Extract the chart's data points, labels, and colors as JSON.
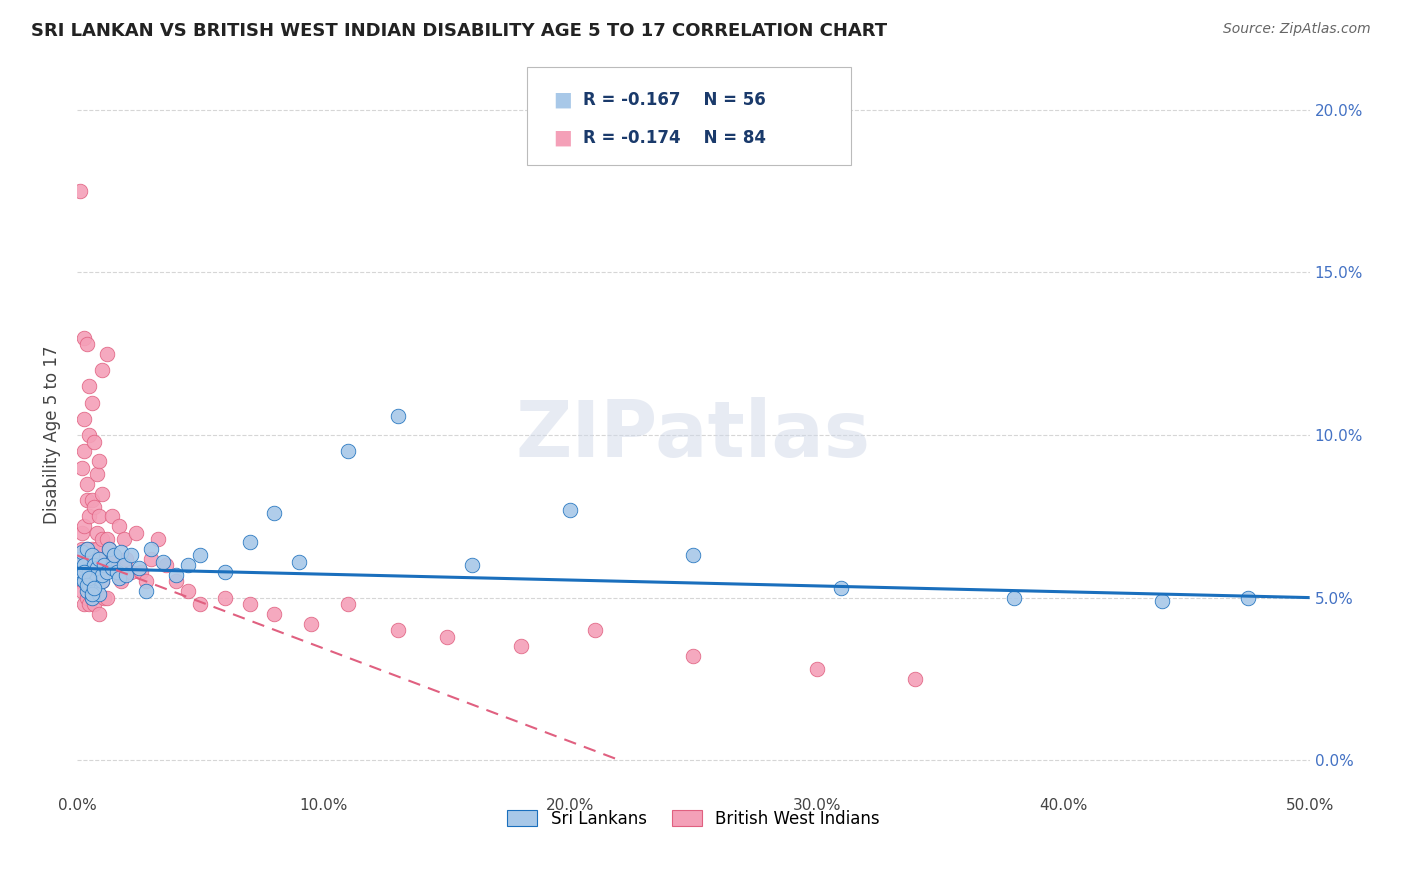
{
  "title": "SRI LANKAN VS BRITISH WEST INDIAN DISABILITY AGE 5 TO 17 CORRELATION CHART",
  "source": "Source: ZipAtlas.com",
  "ylabel": "Disability Age 5 to 17",
  "xlim": [
    0.0,
    0.5
  ],
  "ylim": [
    -0.01,
    0.21
  ],
  "yticks": [
    0.0,
    0.05,
    0.1,
    0.15,
    0.2
  ],
  "ytick_labels": [
    "0.0%",
    "5.0%",
    "10.0%",
    "15.0%",
    "20.0%"
  ],
  "xticks": [
    0.0,
    0.1,
    0.2,
    0.3,
    0.4,
    0.5
  ],
  "xtick_labels": [
    "0.0%",
    "10.0%",
    "20.0%",
    "30.0%",
    "40.0%",
    "50.0%"
  ],
  "blue_color": "#a8c8e8",
  "pink_color": "#f4a0b8",
  "blue_line_color": "#1a6fbd",
  "pink_line_color": "#e06080",
  "legend_r1": "R = -0.167",
  "legend_n1": "N = 56",
  "legend_r2": "R = -0.174",
  "legend_n2": "N = 84",
  "legend_label1": "Sri Lankans",
  "legend_label2": "British West Indians",
  "watermark": "ZIPatlas",
  "blue_trend_x0": 0.0,
  "blue_trend_y0": 0.059,
  "blue_trend_x1": 0.5,
  "blue_trend_y1": 0.05,
  "pink_trend_x0": 0.0,
  "pink_trend_y0": 0.063,
  "pink_trend_x1": 0.22,
  "pink_trend_y1": 0.0,
  "sri_lankan_x": [
    0.001,
    0.001,
    0.002,
    0.002,
    0.003,
    0.003,
    0.004,
    0.004,
    0.005,
    0.005,
    0.006,
    0.006,
    0.007,
    0.007,
    0.008,
    0.008,
    0.009,
    0.009,
    0.01,
    0.01,
    0.011,
    0.012,
    0.013,
    0.014,
    0.015,
    0.016,
    0.017,
    0.018,
    0.019,
    0.02,
    0.022,
    0.025,
    0.028,
    0.03,
    0.035,
    0.04,
    0.045,
    0.05,
    0.06,
    0.07,
    0.08,
    0.09,
    0.11,
    0.13,
    0.16,
    0.2,
    0.25,
    0.31,
    0.38,
    0.44,
    0.475,
    0.003,
    0.004,
    0.005,
    0.006,
    0.007
  ],
  "sri_lankan_y": [
    0.056,
    0.062,
    0.058,
    0.064,
    0.055,
    0.06,
    0.052,
    0.065,
    0.054,
    0.058,
    0.05,
    0.063,
    0.053,
    0.06,
    0.056,
    0.059,
    0.051,
    0.062,
    0.055,
    0.057,
    0.06,
    0.058,
    0.065,
    0.059,
    0.063,
    0.058,
    0.056,
    0.064,
    0.06,
    0.057,
    0.063,
    0.059,
    0.052,
    0.065,
    0.061,
    0.057,
    0.06,
    0.063,
    0.058,
    0.067,
    0.076,
    0.061,
    0.095,
    0.106,
    0.06,
    0.077,
    0.063,
    0.053,
    0.05,
    0.049,
    0.05,
    0.058,
    0.054,
    0.056,
    0.051,
    0.053
  ],
  "bwi_x": [
    0.001,
    0.001,
    0.001,
    0.002,
    0.002,
    0.002,
    0.002,
    0.003,
    0.003,
    0.003,
    0.003,
    0.004,
    0.004,
    0.004,
    0.004,
    0.005,
    0.005,
    0.005,
    0.005,
    0.006,
    0.006,
    0.006,
    0.006,
    0.007,
    0.007,
    0.007,
    0.007,
    0.008,
    0.008,
    0.008,
    0.009,
    0.009,
    0.009,
    0.01,
    0.01,
    0.01,
    0.011,
    0.011,
    0.012,
    0.012,
    0.013,
    0.014,
    0.015,
    0.016,
    0.017,
    0.018,
    0.019,
    0.02,
    0.022,
    0.024,
    0.026,
    0.028,
    0.03,
    0.033,
    0.036,
    0.04,
    0.045,
    0.05,
    0.06,
    0.07,
    0.08,
    0.095,
    0.11,
    0.13,
    0.15,
    0.18,
    0.21,
    0.25,
    0.3,
    0.34,
    0.002,
    0.003,
    0.004,
    0.005,
    0.006,
    0.007,
    0.008,
    0.009,
    0.01,
    0.012,
    0.003,
    0.004,
    0.005,
    0.003
  ],
  "bwi_y": [
    0.06,
    0.055,
    0.175,
    0.065,
    0.058,
    0.07,
    0.052,
    0.06,
    0.072,
    0.048,
    0.055,
    0.065,
    0.058,
    0.08,
    0.05,
    0.062,
    0.055,
    0.075,
    0.048,
    0.065,
    0.058,
    0.08,
    0.05,
    0.062,
    0.055,
    0.078,
    0.048,
    0.07,
    0.055,
    0.065,
    0.062,
    0.045,
    0.075,
    0.068,
    0.055,
    0.082,
    0.06,
    0.05,
    0.068,
    0.05,
    0.065,
    0.075,
    0.062,
    0.058,
    0.072,
    0.055,
    0.068,
    0.062,
    0.058,
    0.07,
    0.058,
    0.055,
    0.062,
    0.068,
    0.06,
    0.055,
    0.052,
    0.048,
    0.05,
    0.048,
    0.045,
    0.042,
    0.048,
    0.04,
    0.038,
    0.035,
    0.04,
    0.032,
    0.028,
    0.025,
    0.09,
    0.095,
    0.085,
    0.1,
    0.11,
    0.098,
    0.088,
    0.092,
    0.12,
    0.125,
    0.13,
    0.128,
    0.115,
    0.105
  ]
}
